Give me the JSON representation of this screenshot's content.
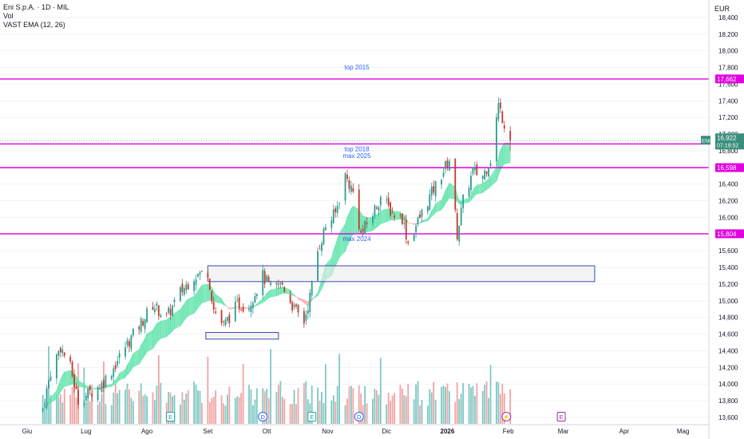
{
  "header": {
    "title": "Eni S.p.A. · 1D · MIL",
    "volume_label": "Vol",
    "indicator_label": "VAST EMA (12, 26)"
  },
  "currency": "EUR",
  "colors": {
    "up": "#2a9d8f",
    "down": "#c0392b",
    "vol_up": "#7fc8c3",
    "vol_down": "#f2a3a3",
    "ribbon_up": "#5be3a8",
    "ribbon_down": "#f4a7a7",
    "level_line": "#e000e0",
    "zone_border": "#3b4ba8",
    "zone_fill": "#ececec",
    "last_price_bg": "#3a8f7c"
  },
  "markers": [
    {
      "date": "2025-08-13",
      "letter": "E",
      "type": "earnings"
    },
    {
      "date": "2025-09-29",
      "letter": "D",
      "type": "dividend"
    },
    {
      "date": "2025-10-24",
      "letter": "E",
      "type": "earnings"
    },
    {
      "date": "2025-11-17",
      "letter": "D",
      "type": "dividend"
    },
    {
      "date": "2026-01-31",
      "letter": "⚡",
      "type": "event"
    },
    {
      "date": "2026-02-28",
      "letter": "E",
      "type": "earnings"
    }
  ],
  "chart_data": {
    "type": "candlestick",
    "title": "Eni S.p.A. · 1D · MIL",
    "ylabel": "EUR",
    "ylim": [
      13600,
      18400
    ],
    "xlim": [
      "2025-06-01",
      "2026-05-31"
    ],
    "y_ticks": [
      13600,
      13800,
      14000,
      14200,
      14400,
      14600,
      14800,
      15000,
      15200,
      15400,
      15600,
      15800,
      16000,
      16200,
      16400,
      16600,
      16800,
      17000,
      17200,
      17400,
      17600,
      17800,
      18000,
      18200,
      18400
    ],
    "x_ticks": [
      {
        "label": "Giu",
        "date": "2025-06-01"
      },
      {
        "label": "Lug",
        "date": "2025-07-01"
      },
      {
        "label": "Ago",
        "date": "2025-08-01"
      },
      {
        "label": "Set",
        "date": "2025-09-01"
      },
      {
        "label": "Ott",
        "date": "2025-10-01"
      },
      {
        "label": "Nov",
        "date": "2025-11-01"
      },
      {
        "label": "Dic",
        "date": "2025-12-01"
      },
      {
        "label": "2026",
        "date": "2026-01-01"
      },
      {
        "label": "Feb",
        "date": "2026-02-01"
      },
      {
        "label": "Mar",
        "date": "2026-03-01"
      },
      {
        "label": "Apr",
        "date": "2026-04-01"
      },
      {
        "label": "Mag",
        "date": "2026-05-01"
      }
    ],
    "close_anchors": [
      [
        "2025-06-09",
        13700
      ],
      [
        "2025-06-13",
        14150
      ],
      [
        "2025-06-18",
        14450
      ],
      [
        "2025-06-23",
        14200
      ],
      [
        "2025-06-27",
        13800
      ],
      [
        "2025-07-03",
        13900
      ],
      [
        "2025-07-09",
        14000
      ],
      [
        "2025-07-15",
        14200
      ],
      [
        "2025-07-21",
        14450
      ],
      [
        "2025-07-28",
        14700
      ],
      [
        "2025-08-04",
        14950
      ],
      [
        "2025-08-11",
        14800
      ],
      [
        "2025-08-18",
        15100
      ],
      [
        "2025-08-25",
        15300
      ],
      [
        "2025-09-01",
        15350
      ],
      [
        "2025-09-04",
        14900
      ],
      [
        "2025-09-09",
        14700
      ],
      [
        "2025-09-16",
        14950
      ],
      [
        "2025-09-22",
        14950
      ],
      [
        "2025-09-29",
        15300
      ],
      [
        "2025-10-03",
        15150
      ],
      [
        "2025-10-09",
        15200
      ],
      [
        "2025-10-15",
        14900
      ],
      [
        "2025-10-20",
        14750
      ],
      [
        "2025-10-23",
        15050
      ],
      [
        "2025-10-27",
        15600
      ],
      [
        "2025-10-31",
        15900
      ],
      [
        "2025-11-05",
        16050
      ],
      [
        "2025-11-10",
        16500
      ],
      [
        "2025-11-14",
        16300
      ],
      [
        "2025-11-18",
        15800
      ],
      [
        "2025-11-24",
        16050
      ],
      [
        "2025-11-28",
        16250
      ],
      [
        "2025-12-04",
        16050
      ],
      [
        "2025-12-09",
        16000
      ],
      [
        "2025-12-12",
        15700
      ],
      [
        "2025-12-17",
        15950
      ],
      [
        "2025-12-22",
        16200
      ],
      [
        "2026-01-02",
        16700
      ],
      [
        "2026-01-06",
        15800
      ],
      [
        "2026-01-09",
        16200
      ],
      [
        "2026-01-14",
        16550
      ],
      [
        "2026-01-19",
        16500
      ],
      [
        "2026-01-23",
        16700
      ],
      [
        "2026-01-27",
        17350
      ],
      [
        "2026-01-29",
        17200
      ],
      [
        "2026-02-02",
        16922
      ]
    ],
    "levels": [
      {
        "value": 17662,
        "label": "top 2015"
      },
      {
        "value": 16882,
        "label": "top 2018"
      },
      {
        "value": 16598,
        "label": "max 2025"
      },
      {
        "value": 15804,
        "label": "max 2024"
      }
    ],
    "zones": [
      {
        "from": "2025-09-01",
        "to": "2026-03-17",
        "low": 15230,
        "high": 15420
      },
      {
        "from": "2025-08-31",
        "to": "2025-10-07",
        "low": 14540,
        "high": 14620
      }
    ],
    "last_price": {
      "value": 16922,
      "symbol": "ENI",
      "countdown": "07:19:52"
    },
    "ema_fast": 12,
    "ema_slow": 26
  }
}
